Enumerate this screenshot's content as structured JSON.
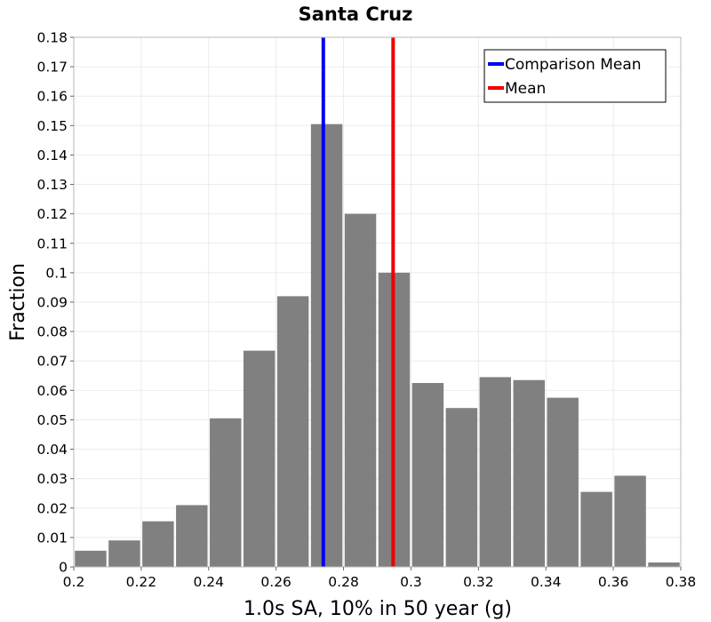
{
  "chart_data": {
    "type": "bar",
    "title": "Santa Cruz",
    "xlabel": "1.0s SA, 10% in 50 year (g)",
    "ylabel": "Fraction",
    "xlim": [
      0.2,
      0.38
    ],
    "ylim": [
      0,
      0.18
    ],
    "grid": true,
    "bin_width": 0.01,
    "bins": [
      {
        "start": 0.2,
        "value": 0.0055
      },
      {
        "start": 0.21,
        "value": 0.009
      },
      {
        "start": 0.22,
        "value": 0.0155
      },
      {
        "start": 0.23,
        "value": 0.021
      },
      {
        "start": 0.24,
        "value": 0.0505
      },
      {
        "start": 0.25,
        "value": 0.0735
      },
      {
        "start": 0.26,
        "value": 0.092
      },
      {
        "start": 0.27,
        "value": 0.1505
      },
      {
        "start": 0.28,
        "value": 0.12
      },
      {
        "start": 0.29,
        "value": 0.1
      },
      {
        "start": 0.3,
        "value": 0.0625
      },
      {
        "start": 0.31,
        "value": 0.054
      },
      {
        "start": 0.32,
        "value": 0.0645
      },
      {
        "start": 0.33,
        "value": 0.0635
      },
      {
        "start": 0.34,
        "value": 0.0575
      },
      {
        "start": 0.35,
        "value": 0.0255
      },
      {
        "start": 0.36,
        "value": 0.031
      },
      {
        "start": 0.37,
        "value": 0.0015
      }
    ],
    "bar_color": "#808080",
    "reference_lines": [
      {
        "name": "Comparison Mean",
        "x": 0.274,
        "color": "#0000ee"
      },
      {
        "name": "Mean",
        "x": 0.2947,
        "color": "#ee0000"
      }
    ],
    "x_ticks": [
      "0.2",
      "0.22",
      "0.24",
      "0.26",
      "0.28",
      "0.3",
      "0.32",
      "0.34",
      "0.36",
      "0.38"
    ],
    "y_ticks": [
      "0",
      "0.01",
      "0.02",
      "0.03",
      "0.04",
      "0.05",
      "0.06",
      "0.07",
      "0.08",
      "0.09",
      "0.1",
      "0.11",
      "0.12",
      "0.13",
      "0.14",
      "0.15",
      "0.16",
      "0.17",
      "0.18"
    ],
    "legend": {
      "position": "top-right",
      "entries": [
        {
          "label": "Comparison Mean",
          "color": "#0000ee"
        },
        {
          "label": "Mean",
          "color": "#ee0000"
        }
      ]
    }
  }
}
